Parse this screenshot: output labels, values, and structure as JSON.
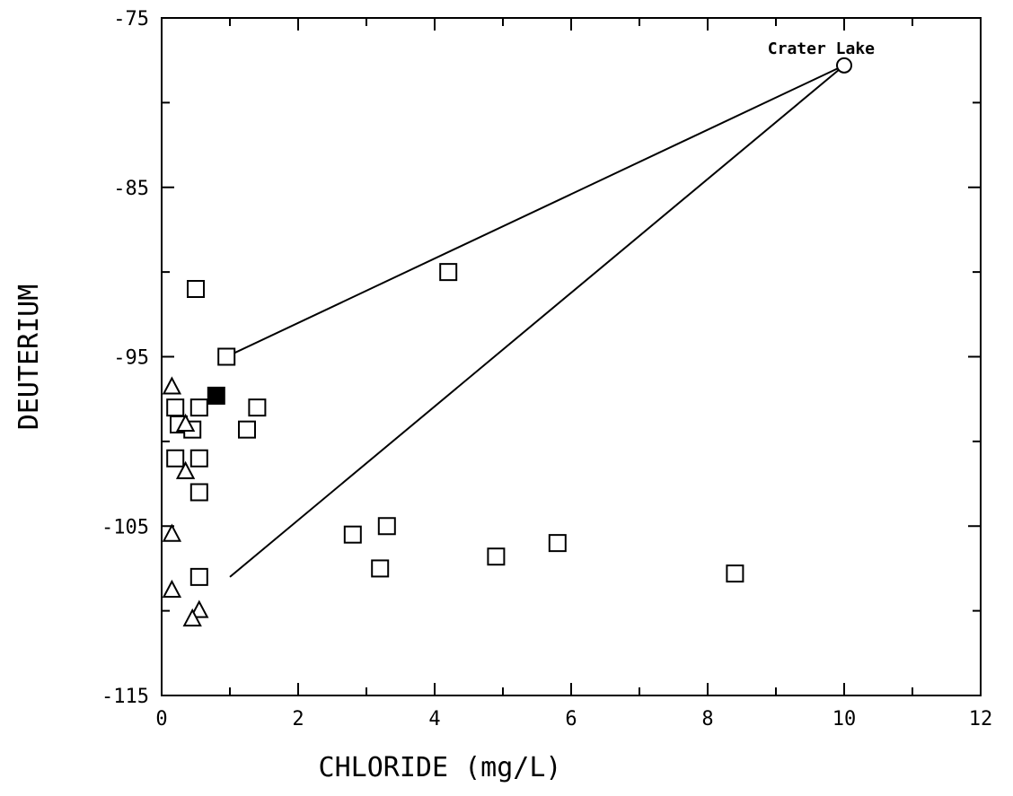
{
  "chart_data": {
    "type": "scatter",
    "title": "",
    "xlabel": "CHLORIDE (mg/L)",
    "ylabel": "DEUTERIUM",
    "xlim": [
      0,
      12
    ],
    "ylim": [
      -115,
      -75
    ],
    "xticks": [
      0,
      2,
      4,
      6,
      8,
      10,
      12
    ],
    "yticks": [
      -75,
      -85,
      -95,
      -105,
      -115
    ],
    "xtick_labels": [
      "0",
      "2",
      "4",
      "6",
      "8",
      "10",
      "12"
    ],
    "ytick_labels": [
      "-75",
      "-85",
      "-95",
      "-105",
      "-115"
    ],
    "grid": false,
    "series": [
      {
        "marker": "open-square",
        "points": [
          {
            "x": 0.5,
            "y": -91.0
          },
          {
            "x": 0.95,
            "y": -95.0
          },
          {
            "x": 0.2,
            "y": -98.0
          },
          {
            "x": 0.55,
            "y": -98.0
          },
          {
            "x": 1.4,
            "y": -98.0
          },
          {
            "x": 0.25,
            "y": -99.0
          },
          {
            "x": 0.45,
            "y": -99.3
          },
          {
            "x": 1.25,
            "y": -99.3
          },
          {
            "x": 0.2,
            "y": -101.0
          },
          {
            "x": 0.55,
            "y": -101.0
          },
          {
            "x": 0.55,
            "y": -103.0
          },
          {
            "x": 0.55,
            "y": -108.0
          },
          {
            "x": 4.2,
            "y": -90.0
          },
          {
            "x": 2.8,
            "y": -105.5
          },
          {
            "x": 3.3,
            "y": -105.0
          },
          {
            "x": 3.2,
            "y": -107.5
          },
          {
            "x": 4.9,
            "y": -106.8
          },
          {
            "x": 5.8,
            "y": -106.0
          },
          {
            "x": 8.4,
            "y": -107.8
          }
        ]
      },
      {
        "marker": "open-triangle",
        "points": [
          {
            "x": 0.15,
            "y": -96.8
          },
          {
            "x": 0.35,
            "y": -99.0
          },
          {
            "x": 0.35,
            "y": -101.8
          },
          {
            "x": 0.15,
            "y": -105.5
          },
          {
            "x": 0.15,
            "y": -108.8
          },
          {
            "x": 0.55,
            "y": -110.0
          },
          {
            "x": 0.45,
            "y": -110.5
          }
        ]
      },
      {
        "marker": "filled-square",
        "points": [
          {
            "x": 0.8,
            "y": -97.3
          }
        ]
      },
      {
        "marker": "open-circle",
        "points": [
          {
            "x": 10.0,
            "y": -77.8
          }
        ]
      }
    ],
    "lines": [
      {
        "from": {
          "x": 0.95,
          "y": -95.0
        },
        "to": {
          "x": 10.0,
          "y": -77.8
        }
      },
      {
        "from": {
          "x": 1.0,
          "y": -108.0
        },
        "to": {
          "x": 10.0,
          "y": -77.8
        }
      }
    ],
    "annotations": [
      {
        "text": "Crater Lake",
        "x": 10.0,
        "y": -77.8
      }
    ]
  }
}
